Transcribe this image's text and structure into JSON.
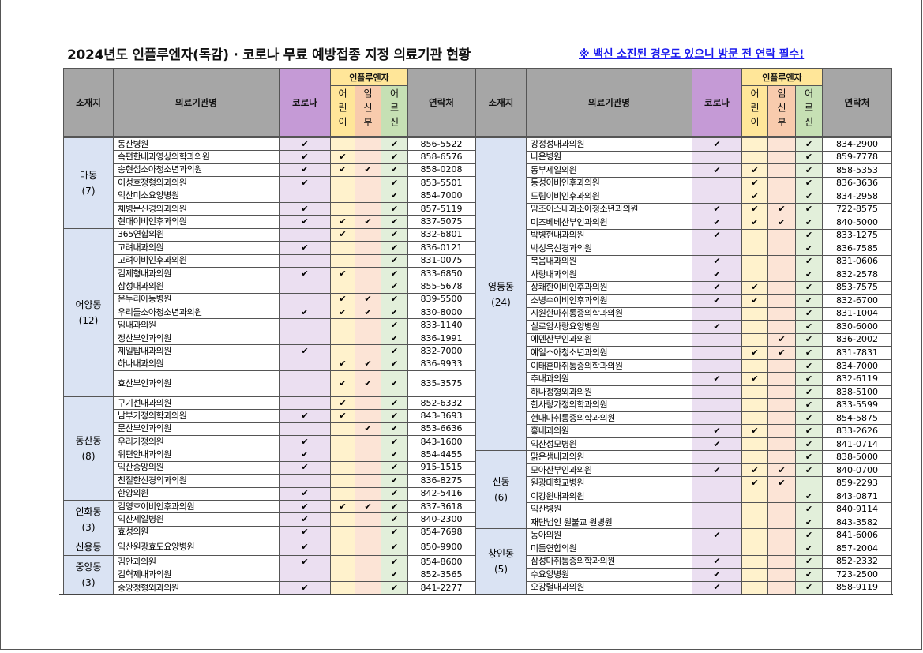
{
  "header": {
    "title": "2024년도 인플루엔자(독감) · 코로나 무료 예방접종 지정 의료기관 현황",
    "notice": "※ 백신 소진된 경우도 있으니 방문 전 연락 필수!"
  },
  "table": {
    "columns": {
      "district": "소재지",
      "name": "의료기관명",
      "covid": "코로나",
      "flu": "인플루엔자",
      "child": "어린이",
      "pregnant": "임신부",
      "senior": "어르신",
      "phone": "연락처"
    },
    "left": [
      {
        "district": "마동",
        "count": "(7)",
        "rows": [
          [
            "동산병원",
            "✔",
            null,
            null,
            "✔",
            "856-5522"
          ],
          [
            "속편한내과영상의학과의원",
            "✔",
            "✔",
            null,
            "✔",
            "858-6576"
          ],
          [
            "송현섭소아청소년과의원",
            "✔",
            "✔",
            "✔",
            "✔",
            "858-0208"
          ],
          [
            "이성호정형외과의원",
            "✔",
            null,
            null,
            "✔",
            "853-5501"
          ],
          [
            "익산미소요양병원",
            null,
            null,
            null,
            "✔",
            "854-7000"
          ],
          [
            "채병문신경외과의원",
            "✔",
            null,
            null,
            "✔",
            "857-5119"
          ],
          [
            "현대이비인후과의원",
            "✔",
            "✔",
            "✔",
            "✔",
            "837-5075"
          ]
        ]
      },
      {
        "district": "어양동",
        "count": "(12)",
        "rows": [
          [
            "365연합의원",
            null,
            "✔",
            null,
            "✔",
            "832-6801"
          ],
          [
            "고려내과의원",
            "✔",
            null,
            null,
            "✔",
            "836-0121"
          ],
          [
            "고려이비인후과의원",
            null,
            null,
            null,
            "✔",
            "831-0075"
          ],
          [
            "김제형내과의원",
            "✔",
            "✔",
            null,
            "✔",
            "833-6850"
          ],
          [
            "삼성내과의원",
            null,
            null,
            null,
            "✔",
            "855-5678"
          ],
          [
            "온누리아동병원",
            null,
            "✔",
            "✔",
            "✔",
            "839-5500"
          ],
          [
            "우리들소아청소년과의원",
            "✔",
            "✔",
            "✔",
            "✔",
            "830-8000"
          ],
          [
            "임내과의원",
            null,
            null,
            null,
            "✔",
            "833-1140"
          ],
          [
            "정산부인과의원",
            null,
            null,
            null,
            "✔",
            "836-1991"
          ],
          [
            "제일탑내과의원",
            "✔",
            null,
            null,
            "✔",
            "832-7000"
          ],
          [
            "하나내과의원",
            null,
            "✔",
            "✔",
            "✔",
            "836-9933"
          ],
          [
            "효산부인과의원",
            null,
            "✔",
            "✔",
            "✔",
            "835-3575"
          ]
        ]
      },
      {
        "district": "동산동",
        "count": "(8)",
        "rows": [
          [
            "구기선내과의원",
            null,
            "✔",
            null,
            "✔",
            "852-6332"
          ],
          [
            "남부가정의학과의원",
            "✔",
            "✔",
            null,
            "✔",
            "843-3693"
          ],
          [
            "문산부인과의원",
            null,
            null,
            "✔",
            "✔",
            "853-6636"
          ],
          [
            "우리가정의원",
            "✔",
            null,
            null,
            "✔",
            "843-1600"
          ],
          [
            "위편안내과의원",
            "✔",
            null,
            null,
            "✔",
            "854-4455"
          ],
          [
            "익산중앙의원",
            "✔",
            null,
            null,
            "✔",
            "915-1515"
          ],
          [
            "친절한신경외과의원",
            null,
            null,
            null,
            "✔",
            "836-8275"
          ],
          [
            "한양의원",
            "✔",
            null,
            null,
            "✔",
            "842-5416"
          ]
        ]
      },
      {
        "district": "인화동",
        "count": "(3)",
        "rows": [
          [
            "김영호이비인후과의원",
            "✔",
            "✔",
            "✔",
            "✔",
            "837-3618"
          ],
          [
            "익산제일병원",
            "✔",
            null,
            null,
            "✔",
            "840-2300"
          ],
          [
            "효성의원",
            "✔",
            null,
            null,
            "✔",
            "854-7698"
          ]
        ]
      },
      {
        "district": "신용동",
        "rows": [
          [
            "익산원광효도요양병원",
            "✔",
            null,
            null,
            "✔",
            "850-9900"
          ]
        ]
      },
      {
        "district": "중앙동",
        "count": "(3)",
        "rows": [
          [
            "김안과의원",
            "✔",
            null,
            null,
            "✔",
            "854-8600"
          ],
          [
            "김혁제내과의원",
            null,
            null,
            null,
            "✔",
            "852-3565"
          ],
          [
            "중앙정형외과의원",
            "✔",
            null,
            null,
            "✔",
            "841-2277"
          ]
        ]
      }
    ],
    "right": [
      {
        "district": "영등동",
        "count": "(24)",
        "rows": [
          [
            "강정성내과의원",
            "✔",
            null,
            null,
            "✔",
            "834-2900"
          ],
          [
            "나은병원",
            null,
            null,
            null,
            "✔",
            "859-7778"
          ],
          [
            "동부제일의원",
            "✔",
            "✔",
            null,
            "✔",
            "858-5353"
          ],
          [
            "동성이비인후과의원",
            null,
            "✔",
            null,
            "✔",
            "836-3636"
          ],
          [
            "드림이비인후과의원",
            null,
            "✔",
            null,
            "✔",
            "834-2958"
          ],
          [
            "맘조이스내과소아청소년과의원",
            "✔",
            "✔",
            "✔",
            "✔",
            "722-8575"
          ],
          [
            "미즈베베산부인과의원",
            "✔",
            "✔",
            "✔",
            "✔",
            "840-5000"
          ],
          [
            "박병현내과의원",
            "✔",
            null,
            null,
            "✔",
            "833-1275"
          ],
          [
            "박성욱신경과의원",
            null,
            null,
            null,
            "✔",
            "836-7585"
          ],
          [
            "복음내과의원",
            "✔",
            null,
            null,
            "✔",
            "831-0606"
          ],
          [
            "사랑내과의원",
            "✔",
            null,
            null,
            "✔",
            "832-2578"
          ],
          [
            "상쾌한이비인후과의원",
            "✔",
            "✔",
            null,
            "✔",
            "853-7575"
          ],
          [
            "소병수이비인후과의원",
            "✔",
            "✔",
            null,
            "✔",
            "832-6700"
          ],
          [
            "시원한마취통증의학과의원",
            null,
            null,
            null,
            "✔",
            "831-1004"
          ],
          [
            "실로암사랑요양병원",
            "✔",
            null,
            null,
            "✔",
            "830-6000"
          ],
          [
            "에덴산부인과의원",
            null,
            null,
            "✔",
            "✔",
            "836-2002"
          ],
          [
            "예일소아청소년과의원",
            null,
            "✔",
            "✔",
            "✔",
            "831-7831"
          ],
          [
            "이태훈마취통증의학과의원",
            null,
            null,
            null,
            "✔",
            "834-7000"
          ],
          [
            "추내과의원",
            "✔",
            "✔",
            null,
            "✔",
            "832-6119"
          ],
          [
            "하나정형외과의원",
            null,
            null,
            null,
            "✔",
            "838-5100"
          ],
          [
            "한사랑가정의학과의원",
            null,
            null,
            null,
            "✔",
            "833-5599"
          ],
          [
            "현대마취통증의학과의원",
            null,
            null,
            null,
            "✔",
            "854-5875"
          ],
          [
            "홍내과의원",
            "✔",
            "✔",
            null,
            "✔",
            "833-2626"
          ],
          [
            "익산성모병원",
            "✔",
            null,
            null,
            "✔",
            "841-0714"
          ]
        ]
      },
      {
        "district": "신동",
        "count": "(6)",
        "rows": [
          [
            "맑은샘내과의원",
            null,
            null,
            null,
            "✔",
            "838-5000"
          ],
          [
            "모아산부인과의원",
            "✔",
            "✔",
            "✔",
            "✔",
            "840-0700"
          ],
          [
            "원광대학교병원",
            null,
            "✔",
            "✔",
            null,
            "859-2293"
          ],
          [
            "이강원내과의원",
            null,
            null,
            null,
            "✔",
            "843-0871"
          ],
          [
            "익산병원",
            null,
            null,
            null,
            "✔",
            "840-9114"
          ],
          [
            "재단법인 원불교 원병원",
            null,
            null,
            null,
            "✔",
            "843-3582"
          ]
        ]
      },
      {
        "district": "창인동",
        "count": "(5)",
        "rows": [
          [
            "동아의원",
            "✔",
            null,
            null,
            "✔",
            "841-6006"
          ],
          [
            "미듬연합의원",
            null,
            null,
            null,
            "✔",
            "857-2004"
          ],
          [
            "삼성마취통증의학과의원",
            "✔",
            null,
            null,
            "✔",
            "852-2332"
          ],
          [
            "수요양병원",
            "✔",
            null,
            null,
            "✔",
            "723-2500"
          ],
          [
            "오강렬내과의원",
            "✔",
            null,
            null,
            "✔",
            "858-9119"
          ]
        ]
      }
    ]
  }
}
